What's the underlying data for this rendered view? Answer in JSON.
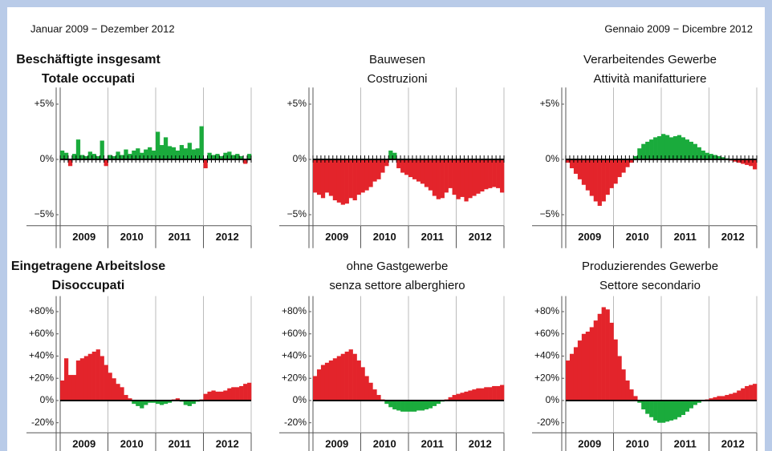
{
  "header": {
    "left": "Januar 2009 − Dezember 2012",
    "right": "Gennaio 2009 − Dicembre 2012"
  },
  "chart_data": [
    {
      "type": "bar",
      "title": "Beschäftigte insgesamt",
      "subtitle": "Totale occupati",
      "title_bold": true,
      "years": [
        "2009",
        "2010",
        "2011",
        "2012"
      ],
      "positive_color": "#1aab3c",
      "negative_color": "#e3242b",
      "ylim": [
        -6,
        6.5
      ],
      "yticks": [
        {
          "value": 5,
          "label": "+5%"
        },
        {
          "value": 0,
          "label": "0%"
        },
        {
          "value": -5,
          "label": "−5%"
        }
      ],
      "values": [
        0.8,
        0.6,
        -0.6,
        0.5,
        1.8,
        0.4,
        0.3,
        0.7,
        0.5,
        0.3,
        1.7,
        -0.6,
        0.4,
        0.3,
        0.7,
        0.4,
        0.9,
        0.5,
        0.8,
        1.0,
        0.6,
        0.9,
        1.1,
        0.8,
        2.5,
        1.3,
        2.0,
        1.2,
        1.1,
        0.8,
        1.3,
        1.0,
        1.5,
        0.9,
        1.0,
        3.0,
        -0.8,
        0.6,
        0.4,
        0.5,
        0.3,
        0.6,
        0.7,
        0.4,
        0.5,
        0.3,
        -0.4,
        0.5
      ]
    },
    {
      "type": "bar",
      "title": "Bauwesen",
      "subtitle": "Costruzioni",
      "title_bold": false,
      "years": [
        "2009",
        "2010",
        "2011",
        "2012"
      ],
      "positive_color": "#1aab3c",
      "negative_color": "#e3242b",
      "ylim": [
        -6,
        6.5
      ],
      "yticks": [
        {
          "value": 5,
          "label": "+5%"
        },
        {
          "value": 0,
          "label": "0%"
        },
        {
          "value": -5,
          "label": "−5%"
        }
      ],
      "values": [
        -3,
        -3.2,
        -3.5,
        -3,
        -3.3,
        -3.7,
        -3.9,
        -4.1,
        -4.0,
        -3.5,
        -3.7,
        -3.2,
        -3,
        -2.8,
        -2.5,
        -2,
        -1.8,
        -1.2,
        -0.6,
        0.8,
        0.6,
        -0.8,
        -1.2,
        -1.4,
        -1.6,
        -1.8,
        -2.0,
        -2.2,
        -2.5,
        -2.8,
        -3.3,
        -3.6,
        -3.5,
        -3.0,
        -2.6,
        -3.2,
        -3.6,
        -3.4,
        -3.8,
        -3.5,
        -3.3,
        -3.1,
        -2.9,
        -2.7,
        -2.6,
        -2.5,
        -2.6,
        -3.0
      ]
    },
    {
      "type": "bar",
      "title": "Verarbeitendes Gewerbe",
      "subtitle": "Attività manifatturiere",
      "title_bold": false,
      "years": [
        "2009",
        "2010",
        "2011",
        "2012"
      ],
      "positive_color": "#1aab3c",
      "negative_color": "#e3242b",
      "ylim": [
        -6,
        6.5
      ],
      "yticks": [
        {
          "value": 5,
          "label": "+5%"
        },
        {
          "value": 0,
          "label": "0%"
        },
        {
          "value": -5,
          "label": "−5%"
        }
      ],
      "values": [
        -0.3,
        -0.8,
        -1.3,
        -1.8,
        -2.3,
        -2.8,
        -3.3,
        -3.8,
        -4.2,
        -3.8,
        -3.2,
        -2.6,
        -2.2,
        -1.6,
        -1.2,
        -0.7,
        -0.3,
        0.3,
        1.0,
        1.4,
        1.6,
        1.8,
        2.0,
        2.1,
        2.3,
        2.2,
        2.0,
        2.1,
        2.2,
        2.0,
        1.8,
        1.6,
        1.4,
        1.1,
        0.8,
        0.6,
        0.5,
        0.4,
        0.3,
        0.2,
        0.1,
        -0.1,
        -0.2,
        -0.3,
        -0.4,
        -0.5,
        -0.6,
        -0.9
      ]
    },
    {
      "type": "bar",
      "title": "Eingetragene Arbeitslose",
      "subtitle": "Disoccupati",
      "title_bold": true,
      "years": [
        "2009",
        "2010",
        "2011",
        "2012"
      ],
      "positive_color": "#e3242b",
      "negative_color": "#1aab3c",
      "ylim": [
        -29,
        94
      ],
      "yticks": [
        {
          "value": 80,
          "label": "+80%"
        },
        {
          "value": 60,
          "label": "+60%"
        },
        {
          "value": 40,
          "label": "+40%"
        },
        {
          "value": 20,
          "label": "+20%"
        },
        {
          "value": 0,
          "label": "0%"
        },
        {
          "value": -20,
          "label": "-20%"
        }
      ],
      "values": [
        18,
        38,
        23,
        23,
        36,
        38,
        40,
        42,
        44,
        46,
        40,
        32,
        25,
        20,
        15,
        12,
        5,
        2,
        -3,
        -5,
        -7,
        -4,
        -2,
        -2,
        -3,
        -4,
        -3,
        -2,
        1,
        2,
        -1,
        -4,
        -5,
        -3,
        -1,
        1,
        6,
        8,
        9,
        8,
        8,
        9,
        11,
        12,
        12,
        13,
        15,
        16
      ]
    },
    {
      "type": "bar",
      "title": "ohne Gastgewerbe",
      "subtitle": "senza settore alberghiero",
      "title_bold": false,
      "years": [
        "2009",
        "2010",
        "2011",
        "2012"
      ],
      "positive_color": "#e3242b",
      "negative_color": "#1aab3c",
      "ylim": [
        -29,
        94
      ],
      "yticks": [
        {
          "value": 80,
          "label": "+80%"
        },
        {
          "value": 60,
          "label": "+60%"
        },
        {
          "value": 40,
          "label": "+40%"
        },
        {
          "value": 20,
          "label": "+20%"
        },
        {
          "value": 0,
          "label": "0%"
        },
        {
          "value": -20,
          "label": "-20%"
        }
      ],
      "values": [
        22,
        28,
        32,
        34,
        36,
        38,
        40,
        42,
        44,
        46,
        42,
        36,
        30,
        22,
        16,
        10,
        5,
        1,
        -3,
        -6,
        -8,
        -9,
        -10,
        -10,
        -10,
        -10,
        -9,
        -9,
        -8,
        -7,
        -5,
        -3,
        -1,
        1,
        3,
        5,
        6,
        7,
        8,
        9,
        10,
        11,
        11,
        12,
        12,
        13,
        13,
        14
      ]
    },
    {
      "type": "bar",
      "title": "Produzierendes Gewerbe",
      "subtitle": "Settore secondario",
      "title_bold": false,
      "years": [
        "2009",
        "2010",
        "2011",
        "2012"
      ],
      "positive_color": "#e3242b",
      "negative_color": "#1aab3c",
      "ylim": [
        -29,
        94
      ],
      "yticks": [
        {
          "value": 80,
          "label": "+80%"
        },
        {
          "value": 60,
          "label": "+60%"
        },
        {
          "value": 40,
          "label": "+40%"
        },
        {
          "value": 20,
          "label": "+20%"
        },
        {
          "value": 0,
          "label": "0%"
        },
        {
          "value": -20,
          "label": "-20%"
        }
      ],
      "values": [
        36,
        42,
        48,
        54,
        60,
        62,
        66,
        72,
        78,
        84,
        82,
        70,
        55,
        40,
        28,
        18,
        10,
        4,
        -2,
        -8,
        -12,
        -15,
        -18,
        -20,
        -20,
        -19,
        -18,
        -17,
        -15,
        -13,
        -10,
        -7,
        -4,
        -2,
        0,
        1,
        2,
        3,
        4,
        4,
        5,
        6,
        7,
        9,
        11,
        13,
        14,
        15
      ]
    }
  ]
}
